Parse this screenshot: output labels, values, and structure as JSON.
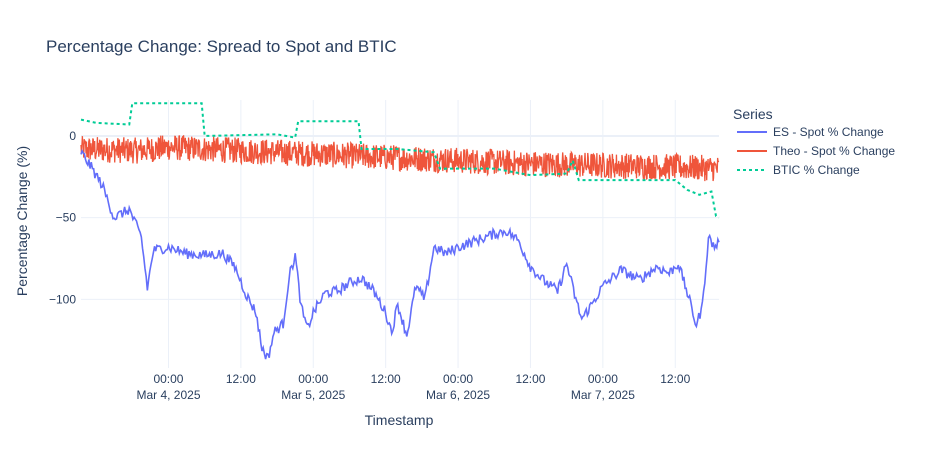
{
  "chart_data": {
    "type": "line",
    "title": "Percentage Change: Spread to Spot and BTIC",
    "xlabel": "Timestamp",
    "ylabel": "Percentage Change (%)",
    "x_range_hours": [
      -14.5,
      39.2
    ],
    "xlim": [
      "2025-03-03 09:30",
      "2025-03-07 19:15"
    ],
    "ylim": [
      -142,
      22
    ],
    "grid": true,
    "legend": {
      "title": "Series",
      "placement": "top-right outside"
    },
    "x_ticks": [
      {
        "x": "2025-03-04 00:00",
        "label": "00:00",
        "sublabel": "Mar 4, 2025"
      },
      {
        "x": "2025-03-04 12:00",
        "label": "12:00",
        "sublabel": ""
      },
      {
        "x": "2025-03-05 00:00",
        "label": "00:00",
        "sublabel": "Mar 5, 2025"
      },
      {
        "x": "2025-03-05 12:00",
        "label": "12:00",
        "sublabel": ""
      },
      {
        "x": "2025-03-06 00:00",
        "label": "00:00",
        "sublabel": "Mar 6, 2025"
      },
      {
        "x": "2025-03-06 12:00",
        "label": "12:00",
        "sublabel": ""
      },
      {
        "x": "2025-03-07 00:00",
        "label": "00:00",
        "sublabel": "Mar 7, 2025"
      },
      {
        "x": "2025-03-07 12:00",
        "label": "12:00",
        "sublabel": ""
      }
    ],
    "y_ticks": [
      {
        "y": 0,
        "label": "0"
      },
      {
        "y": -50,
        "label": "−50"
      },
      {
        "y": -100,
        "label": "−100"
      }
    ],
    "series": [
      {
        "name": "ES - Spot % Change",
        "color": "#636efa",
        "dash": "solid",
        "points": [
          [
            "2025-03-03 09:30",
            -10
          ],
          [
            "2025-03-03 11:00",
            -18
          ],
          [
            "2025-03-03 13:00",
            -30
          ],
          [
            "2025-03-03 15:00",
            -50
          ],
          [
            "2025-03-03 17:30",
            -45
          ],
          [
            "2025-03-03 19:30",
            -62
          ],
          [
            "2025-03-03 20:30",
            -93
          ],
          [
            "2025-03-03 21:30",
            -70
          ],
          [
            "2025-03-04 00:00",
            -68
          ],
          [
            "2025-03-04 03:00",
            -72
          ],
          [
            "2025-03-04 06:00",
            -73
          ],
          [
            "2025-03-04 09:00",
            -72
          ],
          [
            "2025-03-04 11:00",
            -80
          ],
          [
            "2025-03-04 13:00",
            -98
          ],
          [
            "2025-03-04 14:30",
            -108
          ],
          [
            "2025-03-04 15:30",
            -130
          ],
          [
            "2025-03-04 16:30",
            -136
          ],
          [
            "2025-03-04 17:30",
            -120
          ],
          [
            "2025-03-04 19:00",
            -115
          ],
          [
            "2025-03-04 20:00",
            -86
          ],
          [
            "2025-03-04 21:00",
            -73
          ],
          [
            "2025-03-04 22:00",
            -105
          ],
          [
            "2025-03-04 23:00",
            -118
          ],
          [
            "2025-03-05 00:00",
            -108
          ],
          [
            "2025-03-05 02:00",
            -96
          ],
          [
            "2025-03-05 04:00",
            -95
          ],
          [
            "2025-03-05 06:00",
            -90
          ],
          [
            "2025-03-05 08:00",
            -87
          ],
          [
            "2025-03-05 10:00",
            -95
          ],
          [
            "2025-03-05 12:00",
            -108
          ],
          [
            "2025-03-05 13:00",
            -120
          ],
          [
            "2025-03-05 14:00",
            -103
          ],
          [
            "2025-03-05 15:30",
            -122
          ],
          [
            "2025-03-05 17:00",
            -92
          ],
          [
            "2025-03-05 18:30",
            -100
          ],
          [
            "2025-03-05 20:00",
            -68
          ],
          [
            "2025-03-05 22:00",
            -72
          ],
          [
            "2025-03-06 00:00",
            -68
          ],
          [
            "2025-03-06 03:00",
            -64
          ],
          [
            "2025-03-06 06:00",
            -60
          ],
          [
            "2025-03-06 08:00",
            -58
          ],
          [
            "2025-03-06 10:00",
            -64
          ],
          [
            "2025-03-06 12:00",
            -80
          ],
          [
            "2025-03-06 14:00",
            -88
          ],
          [
            "2025-03-06 16:30",
            -95
          ],
          [
            "2025-03-06 18:00",
            -78
          ],
          [
            "2025-03-06 19:30",
            -100
          ],
          [
            "2025-03-06 20:30",
            -112
          ],
          [
            "2025-03-06 22:00",
            -104
          ],
          [
            "2025-03-07 00:00",
            -92
          ],
          [
            "2025-03-07 03:00",
            -82
          ],
          [
            "2025-03-07 06:00",
            -88
          ],
          [
            "2025-03-07 09:00",
            -80
          ],
          [
            "2025-03-07 11:00",
            -84
          ],
          [
            "2025-03-07 12:30",
            -78
          ],
          [
            "2025-03-07 14:00",
            -96
          ],
          [
            "2025-03-07 15:30",
            -116
          ],
          [
            "2025-03-07 16:30",
            -104
          ],
          [
            "2025-03-07 17:30",
            -62
          ],
          [
            "2025-03-07 18:30",
            -68
          ],
          [
            "2025-03-07 19:15",
            -65
          ]
        ]
      },
      {
        "name": "Theo - Spot % Change",
        "color": "#ef553b",
        "dash": "solid",
        "band": true,
        "center_points": [
          [
            "2025-03-03 09:30",
            -8
          ],
          [
            "2025-03-03 19:00",
            -9
          ],
          [
            "2025-03-04 00:00",
            -7
          ],
          [
            "2025-03-04 12:00",
            -9
          ],
          [
            "2025-03-05 00:00",
            -11
          ],
          [
            "2025-03-05 12:00",
            -13
          ],
          [
            "2025-03-06 00:00",
            -15
          ],
          [
            "2025-03-06 12:00",
            -17
          ],
          [
            "2025-03-07 00:00",
            -18
          ],
          [
            "2025-03-07 12:00",
            -19
          ],
          [
            "2025-03-07 19:15",
            -20
          ]
        ],
        "band_half_width": 8
      },
      {
        "name": "BTIC % Change",
        "color": "#00cc96",
        "dash": "dot",
        "points": [
          [
            "2025-03-03 09:30",
            10
          ],
          [
            "2025-03-03 12:00",
            8
          ],
          [
            "2025-03-03 17:30",
            7
          ],
          [
            "2025-03-03 18:00",
            20
          ],
          [
            "2025-03-04 05:30",
            20
          ],
          [
            "2025-03-04 06:00",
            0
          ],
          [
            "2025-03-04 18:00",
            1
          ],
          [
            "2025-03-04 21:00",
            -1
          ],
          [
            "2025-03-04 21:30",
            9
          ],
          [
            "2025-03-05 07:30",
            9
          ],
          [
            "2025-03-05 08:00",
            -8
          ],
          [
            "2025-03-05 14:00",
            -8
          ],
          [
            "2025-03-05 20:00",
            -10
          ],
          [
            "2025-03-05 21:00",
            -20
          ],
          [
            "2025-03-06 06:00",
            -20
          ],
          [
            "2025-03-06 12:00",
            -24
          ],
          [
            "2025-03-06 18:00",
            -23
          ],
          [
            "2025-03-06 19:00",
            -15
          ],
          [
            "2025-03-06 20:00",
            -27
          ],
          [
            "2025-03-07 12:00",
            -27
          ],
          [
            "2025-03-07 14:00",
            -33
          ],
          [
            "2025-03-07 16:00",
            -36
          ],
          [
            "2025-03-07 18:00",
            -34
          ],
          [
            "2025-03-07 18:45",
            -49
          ],
          [
            "2025-03-07 19:15",
            -50
          ]
        ]
      }
    ]
  }
}
